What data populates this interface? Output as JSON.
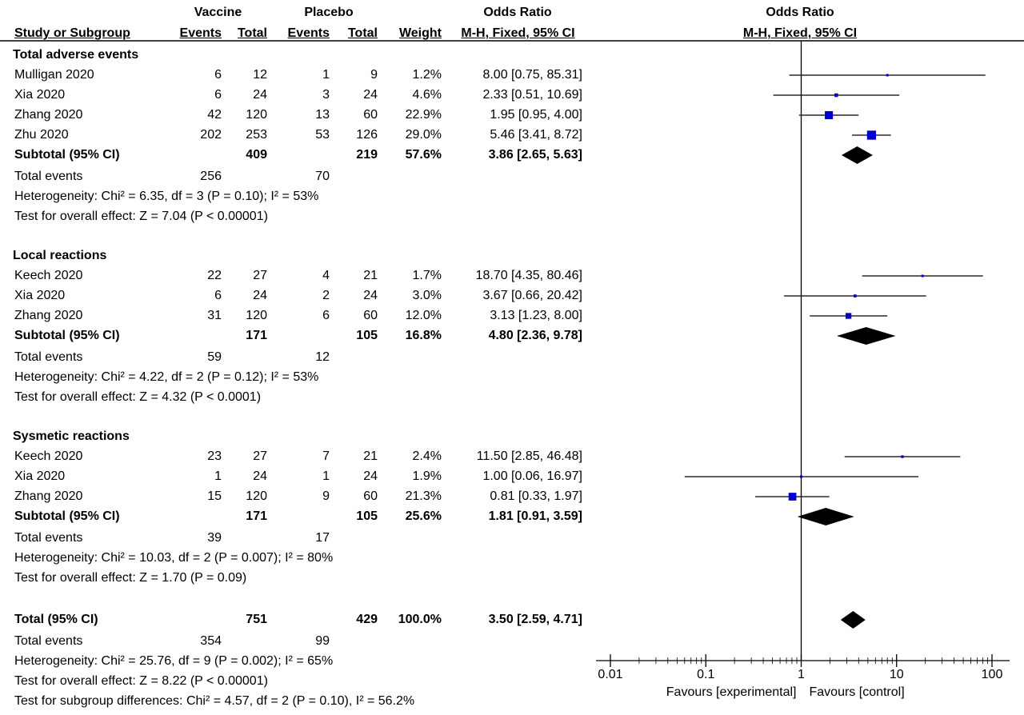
{
  "header": {
    "vaccine": "Vaccine",
    "placebo": "Placebo",
    "or_title": "Odds Ratio",
    "study_col": "Study or Subgroup",
    "events": "Events",
    "total": "Total",
    "weight": "Weight",
    "method": "M-H, Fixed, 95% CI",
    "plot_title": "Odds Ratio",
    "plot_method": "M-H, Fixed, 95% CI"
  },
  "groups": [
    {
      "title": "Total adverse events",
      "studies": [
        {
          "name": "Mulligan 2020",
          "ve": "6",
          "vt": "12",
          "pe": "1",
          "pt": "9",
          "w": "1.2%",
          "ci": "8.00 [0.75, 85.31]"
        },
        {
          "name": "Xia 2020",
          "ve": "6",
          "vt": "24",
          "pe": "3",
          "pt": "24",
          "w": "4.6%",
          "ci": "2.33 [0.51, 10.69]"
        },
        {
          "name": "Zhang 2020",
          "ve": "42",
          "vt": "120",
          "pe": "13",
          "pt": "60",
          "w": "22.9%",
          "ci": "1.95 [0.95, 4.00]"
        },
        {
          "name": "Zhu 2020",
          "ve": "202",
          "vt": "253",
          "pe": "53",
          "pt": "126",
          "w": "29.0%",
          "ci": "5.46 [3.41, 8.72]"
        }
      ],
      "subtotal": {
        "label": "Subtotal (95% CI)",
        "vt": "409",
        "pt": "219",
        "w": "57.6%",
        "ci": "3.86 [2.65, 5.63]"
      },
      "events": {
        "label": "Total events",
        "v": "256",
        "p": "70"
      },
      "het": "Heterogeneity: Chi² = 6.35, df = 3 (P = 0.10); I² = 53%",
      "test": "Test for overall effect: Z = 7.04 (P < 0.00001)"
    },
    {
      "title": "Local reactions",
      "studies": [
        {
          "name": "Keech 2020",
          "ve": "22",
          "vt": "27",
          "pe": "4",
          "pt": "21",
          "w": "1.7%",
          "ci": "18.70 [4.35, 80.46]"
        },
        {
          "name": "Xia 2020",
          "ve": "6",
          "vt": "24",
          "pe": "2",
          "pt": "24",
          "w": "3.0%",
          "ci": "3.67 [0.66, 20.42]"
        },
        {
          "name": "Zhang 2020",
          "ve": "31",
          "vt": "120",
          "pe": "6",
          "pt": "60",
          "w": "12.0%",
          "ci": "3.13 [1.23, 8.00]"
        }
      ],
      "subtotal": {
        "label": "Subtotal (95% CI)",
        "vt": "171",
        "pt": "105",
        "w": "16.8%",
        "ci": "4.80 [2.36, 9.78]"
      },
      "events": {
        "label": "Total events",
        "v": "59",
        "p": "12"
      },
      "het": "Heterogeneity: Chi² = 4.22, df = 2 (P = 0.12); I² = 53%",
      "test": "Test for overall effect: Z = 4.32 (P < 0.0001)"
    },
    {
      "title": "Sysmetic reactions",
      "studies": [
        {
          "name": "Keech 2020",
          "ve": "23",
          "vt": "27",
          "pe": "7",
          "pt": "21",
          "w": "2.4%",
          "ci": "11.50 [2.85, 46.48]"
        },
        {
          "name": "Xia 2020",
          "ve": "1",
          "vt": "24",
          "pe": "1",
          "pt": "24",
          "w": "1.9%",
          "ci": "1.00 [0.06, 16.97]"
        },
        {
          "name": "Zhang 2020",
          "ve": "15",
          "vt": "120",
          "pe": "9",
          "pt": "60",
          "w": "21.3%",
          "ci": "0.81 [0.33, 1.97]"
        }
      ],
      "subtotal": {
        "label": "Subtotal (95% CI)",
        "vt": "171",
        "pt": "105",
        "w": "25.6%",
        "ci": "1.81 [0.91, 3.59]"
      },
      "events": {
        "label": "Total events",
        "v": "39",
        "p": "17"
      },
      "het": "Heterogeneity: Chi² = 10.03, df = 2 (P = 0.007); I² = 80%",
      "test": "Test for overall effect: Z = 1.70 (P = 0.09)"
    }
  ],
  "overall": {
    "label": "Total (95% CI)",
    "vt": "751",
    "pt": "429",
    "w": "100.0%",
    "ci": "3.50 [2.59, 4.71]",
    "events": {
      "label": "Total events",
      "v": "354",
      "p": "99"
    },
    "het": "Heterogeneity: Chi² = 25.76, df = 9 (P = 0.002); I² = 65%",
    "test": "Test for overall effect: Z = 8.22 (P < 0.00001)",
    "subgroup": "Test for subgroup differences: Chi² = 4.57, df = 2 (P = 0.10), I² = 56.2%"
  },
  "axis": {
    "ticks": [
      "0.01",
      "0.1",
      "1",
      "10",
      "100"
    ],
    "favours_left": "Favours [experimental]",
    "favours_right": "Favours [control]"
  },
  "chart_data": {
    "type": "scatter",
    "title": "Odds Ratio",
    "xlabel": "M-H, Fixed, 95% CI",
    "scale": "log",
    "xlim": [
      0.01,
      100
    ],
    "marker_color": "#0000cc",
    "diamond_color": "#000000",
    "studies": [
      {
        "name": "Mulligan 2020",
        "or": 8.0,
        "lo": 0.75,
        "hi": 85.31,
        "weight": 1.2
      },
      {
        "name": "Xia 2020",
        "or": 2.33,
        "lo": 0.51,
        "hi": 10.69,
        "weight": 4.6
      },
      {
        "name": "Zhang 2020",
        "or": 1.95,
        "lo": 0.95,
        "hi": 4.0,
        "weight": 22.9
      },
      {
        "name": "Zhu 2020",
        "or": 5.46,
        "lo": 3.41,
        "hi": 8.72,
        "weight": 29.0
      },
      {
        "name": "Keech 2020",
        "or": 18.7,
        "lo": 4.35,
        "hi": 80.46,
        "weight": 1.7
      },
      {
        "name": "Xia 2020",
        "or": 3.67,
        "lo": 0.66,
        "hi": 20.42,
        "weight": 3.0
      },
      {
        "name": "Zhang 2020",
        "or": 3.13,
        "lo": 1.23,
        "hi": 8.0,
        "weight": 12.0
      },
      {
        "name": "Keech 2020",
        "or": 11.5,
        "lo": 2.85,
        "hi": 46.48,
        "weight": 2.4
      },
      {
        "name": "Xia 2020",
        "or": 1.0,
        "lo": 0.06,
        "hi": 16.97,
        "weight": 1.9
      },
      {
        "name": "Zhang 2020",
        "or": 0.81,
        "lo": 0.33,
        "hi": 1.97,
        "weight": 21.3
      }
    ],
    "summaries": [
      {
        "name": "Subtotal (95% CI)",
        "or": 3.86,
        "lo": 2.65,
        "hi": 5.63
      },
      {
        "name": "Subtotal (95% CI)",
        "or": 4.8,
        "lo": 2.36,
        "hi": 9.78
      },
      {
        "name": "Subtotal (95% CI)",
        "or": 1.81,
        "lo": 0.91,
        "hi": 3.59
      },
      {
        "name": "Total (95% CI)",
        "or": 3.5,
        "lo": 2.59,
        "hi": 4.71
      }
    ]
  }
}
